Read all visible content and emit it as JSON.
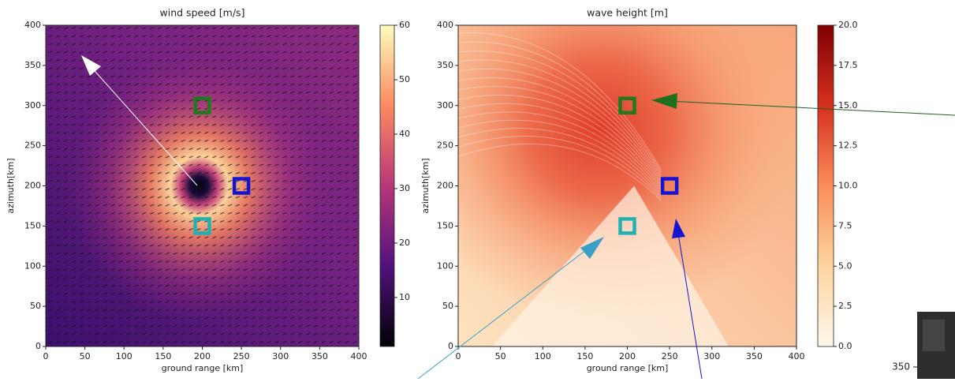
{
  "chart_data": [
    {
      "type": "heatmap",
      "title": "wind speed [m/s]",
      "x_label": "ground range [km]",
      "y_label": "azimuth[km]",
      "xlim": [
        0,
        400
      ],
      "ylim": [
        0,
        400
      ],
      "xticks": [
        0,
        50,
        100,
        150,
        200,
        250,
        300,
        350,
        400
      ],
      "yticks": [
        0,
        50,
        100,
        150,
        200,
        250,
        300,
        350,
        400
      ],
      "colormap": "magma",
      "clim": [
        1,
        60
      ],
      "colorbar_ticks": [
        10,
        20,
        30,
        40,
        50,
        60
      ],
      "markers": {
        "x": [
          200,
          250,
          200
        ],
        "y": [
          300,
          200,
          150
        ],
        "colors": [
          "#1f7a1f",
          "#1414d2",
          "#20b2b2"
        ]
      }
    },
    {
      "type": "heatmap",
      "title": "wave height [m]",
      "x_label": "ground range [km]",
      "y_label": "azimuth[km]",
      "xlim": [
        0,
        400
      ],
      "ylim": [
        0,
        400
      ],
      "xticks": [
        0,
        50,
        100,
        150,
        200,
        250,
        300,
        350,
        400
      ],
      "yticks": [
        0,
        50,
        100,
        150,
        200,
        250,
        300,
        350,
        400
      ],
      "colormap": "OrRd",
      "clim": [
        0,
        20
      ],
      "colorbar_ticks": [
        {
          "value": 0,
          "label": "0.0"
        },
        {
          "value": 2.5,
          "label": "2.5"
        },
        {
          "value": 5,
          "label": "5.0"
        },
        {
          "value": 7.5,
          "label": "7.5"
        },
        {
          "value": 10,
          "label": "10.0"
        },
        {
          "value": 12.5,
          "label": "12.5"
        },
        {
          "value": 15,
          "label": "15.0"
        },
        {
          "value": 17.5,
          "label": "17.5"
        },
        {
          "value": 20,
          "label": "20.0"
        }
      ],
      "markers": {
        "x": [
          200,
          250,
          200
        ],
        "y": [
          300,
          200,
          150
        ],
        "colors": [
          "#1f7a1f",
          "#1414d2",
          "#20b2b2"
        ]
      }
    }
  ],
  "cropped_panel": {
    "yticks": [
      350
    ]
  }
}
